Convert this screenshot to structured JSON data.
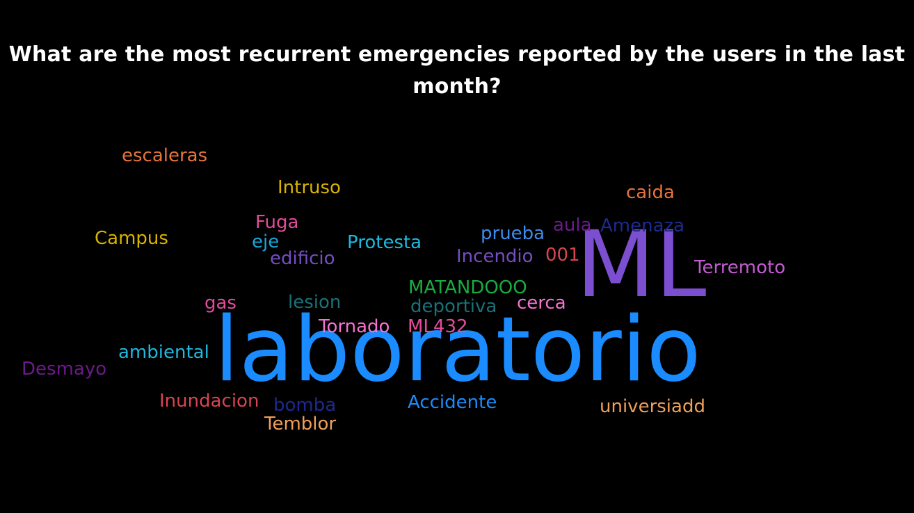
{
  "chart_data": {
    "type": "wordcloud",
    "title": "What are the most recurrent emergencies reported by the users in the last month?",
    "words": [
      {
        "text": "laboratorio",
        "weight": 100,
        "color": "#1a8cff"
      },
      {
        "text": "ML",
        "weight": 75,
        "color": "#7b4fcf"
      },
      {
        "text": "escaleras",
        "weight": 15,
        "color": "#e8743b"
      },
      {
        "text": "Intruso",
        "weight": 15,
        "color": "#d9b300"
      },
      {
        "text": "caida",
        "weight": 15,
        "color": "#e8743b"
      },
      {
        "text": "Fuga",
        "weight": 15,
        "color": "#e44c9a"
      },
      {
        "text": "Campus",
        "weight": 15,
        "color": "#d9b300"
      },
      {
        "text": "eje",
        "weight": 15,
        "color": "#1aa6d9"
      },
      {
        "text": "edificio",
        "weight": 15,
        "color": "#744ec2"
      },
      {
        "text": "Protesta",
        "weight": 15,
        "color": "#1fb8e0"
      },
      {
        "text": "prueba",
        "weight": 15,
        "color": "#3a8ef0"
      },
      {
        "text": "aula",
        "weight": 15,
        "color": "#6b1a8a"
      },
      {
        "text": "Amenaza",
        "weight": 15,
        "color": "#1d2a8f"
      },
      {
        "text": "Incendio",
        "weight": 15,
        "color": "#744ec2"
      },
      {
        "text": "001",
        "weight": 15,
        "color": "#d64550"
      },
      {
        "text": "Terremoto",
        "weight": 15,
        "color": "#c35bd0"
      },
      {
        "text": "MATANDOOO",
        "weight": 15,
        "color": "#1aab40"
      },
      {
        "text": "gas",
        "weight": 15,
        "color": "#e44c9a"
      },
      {
        "text": "lesion",
        "weight": 15,
        "color": "#197278"
      },
      {
        "text": "deportiva",
        "weight": 15,
        "color": "#197278"
      },
      {
        "text": "cerca",
        "weight": 15,
        "color": "#f472d0"
      },
      {
        "text": "Tornado",
        "weight": 15,
        "color": "#f472d0"
      },
      {
        "text": "ML432",
        "weight": 15,
        "color": "#e44c9a"
      },
      {
        "text": "ambiental",
        "weight": 15,
        "color": "#1fb8e0"
      },
      {
        "text": "Desmayo",
        "weight": 15,
        "color": "#6b1a8a"
      },
      {
        "text": "Inundacion",
        "weight": 15,
        "color": "#d64550"
      },
      {
        "text": "bomba",
        "weight": 15,
        "color": "#1d2a8f"
      },
      {
        "text": "Accidente",
        "weight": 15,
        "color": "#1a8cff"
      },
      {
        "text": "universiadd",
        "weight": 15,
        "color": "#f0a05a"
      },
      {
        "text": "Temblor",
        "weight": 15,
        "color": "#f0a05a"
      }
    ]
  }
}
